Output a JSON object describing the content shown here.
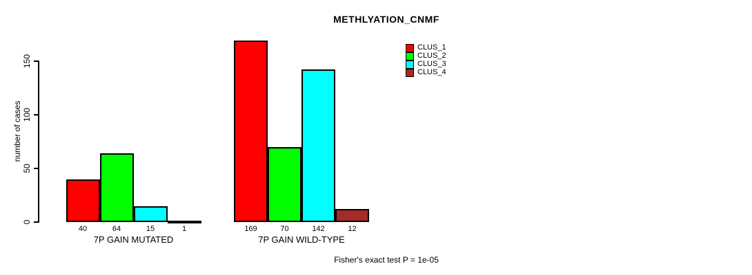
{
  "chart_data": {
    "type": "bar",
    "title": "METHLYATION_CNMF",
    "ylabel": "number of cases",
    "xlabel": "",
    "ylim": [
      0,
      175
    ],
    "yticks": [
      0,
      50,
      100,
      150
    ],
    "grid": false,
    "legend_position": "top-right",
    "categories": [
      "7P GAIN MUTATED",
      "7P GAIN WILD-TYPE"
    ],
    "series": [
      {
        "name": "CLUS_1",
        "color": "#FF0000",
        "values": [
          40,
          169
        ]
      },
      {
        "name": "CLUS_2",
        "color": "#00FF00",
        "values": [
          64,
          70
        ]
      },
      {
        "name": "CLUS_3",
        "color": "#00FFFF",
        "values": [
          15,
          142
        ]
      },
      {
        "name": "CLUS_4",
        "color": "#A52A2A",
        "values": [
          1,
          12
        ]
      }
    ],
    "bar_value_labels_shown": true,
    "annotation": "Fisher's exact test P = 1e-05"
  }
}
